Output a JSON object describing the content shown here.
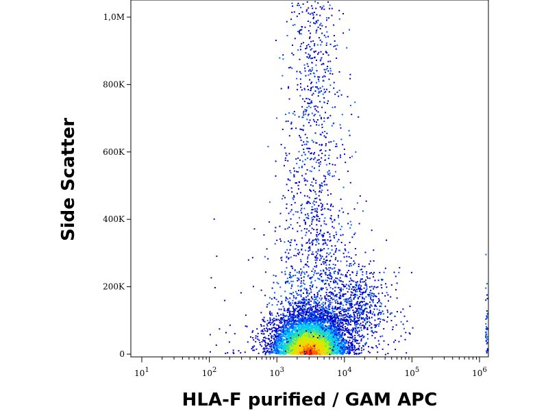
{
  "chart_data": {
    "type": "scatter",
    "title": "",
    "xlabel": "HLA-F purified / GAM APC",
    "ylabel": "Side Scatter",
    "x_scale": "log",
    "xlim": [
      10,
      1000000
    ],
    "ylim": [
      0,
      1050000
    ],
    "x_ticks": [
      {
        "value": 10,
        "base": "10",
        "exp": "1"
      },
      {
        "value": 100,
        "base": "10",
        "exp": "2"
      },
      {
        "value": 1000,
        "base": "10",
        "exp": "3"
      },
      {
        "value": 10000,
        "base": "10",
        "exp": "4"
      },
      {
        "value": 100000,
        "base": "10",
        "exp": "5"
      },
      {
        "value": 1000000,
        "base": "10",
        "exp": "6"
      }
    ],
    "y_ticks": [
      {
        "value": 0,
        "label": "0"
      },
      {
        "value": 200000,
        "label": "200K"
      },
      {
        "value": 400000,
        "label": "400K"
      },
      {
        "value": 600000,
        "label": "600K"
      },
      {
        "value": 800000,
        "label": "800K"
      },
      {
        "value": 1000000,
        "label": "1,0M"
      }
    ],
    "density_colormap": [
      "#0000c8",
      "#0060ff",
      "#00c8ff",
      "#30e0a0",
      "#c8f000",
      "#ffd000",
      "#ff6000",
      "#e00000"
    ],
    "clusters": [
      {
        "name": "main population",
        "x_center": 3000,
        "y_center": 25000,
        "x_spread_decades": 0.28,
        "y_spread": 55000,
        "peak_density": "high"
      },
      {
        "name": "upward tail",
        "x_center": 3500,
        "y_range": [
          100000,
          1050000
        ],
        "density": "low"
      },
      {
        "name": "right shoulder",
        "x_center": 15000,
        "y_center": 140000,
        "x_spread_decades": 0.25,
        "y_spread": 60000,
        "density": "low"
      },
      {
        "name": "right-edge events",
        "x_center": 1000000,
        "y_range": [
          0,
          250000
        ],
        "density": "very low"
      }
    ],
    "grid": false,
    "legend": "none"
  }
}
